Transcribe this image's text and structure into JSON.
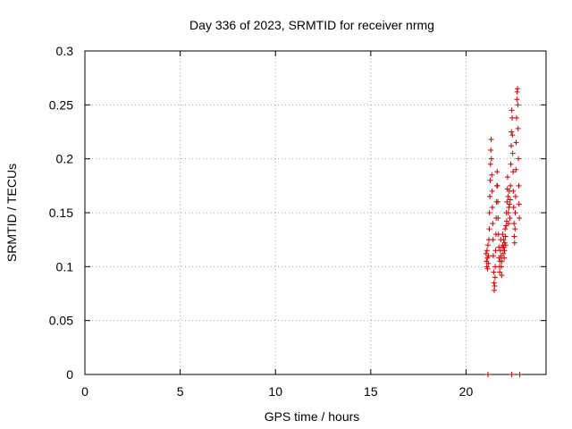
{
  "chart_data": {
    "type": "scatter",
    "title": "Day 336 of 2023, SRMTID for receiver nrmg",
    "xlabel": "GPS time / hours",
    "ylabel": "SRMTID / TECUs",
    "xlim": [
      0,
      24.2
    ],
    "ylim": [
      0,
      0.3
    ],
    "xticks": [
      "0",
      "5",
      "10",
      "15",
      "20"
    ],
    "xtick_values": [
      0,
      5,
      10,
      15,
      20
    ],
    "yticks": [
      "0",
      "0.05",
      "0.1",
      "0.15",
      "0.2",
      "0.25",
      "0.3"
    ],
    "ytick_values": [
      0,
      0.05,
      0.1,
      0.15,
      0.2,
      0.25,
      0.3
    ],
    "grid": true,
    "legend": "none",
    "marker": "plus",
    "color": "#cc0000",
    "series": [
      {
        "points": [
          [
            21.05,
            0.112
          ],
          [
            21.07,
            0.105
          ],
          [
            21.09,
            0.1
          ],
          [
            21.1,
            0.115
          ],
          [
            21.12,
            0.108
          ],
          [
            21.13,
            0.098
          ],
          [
            21.15,
            0.12
          ],
          [
            21.17,
            0.103
          ],
          [
            21.18,
            0.11
          ],
          [
            21.2,
            0.125
          ],
          [
            21.22,
            0.135
          ],
          [
            21.23,
            0.15
          ],
          [
            21.25,
            0.165
          ],
          [
            21.27,
            0.18
          ],
          [
            21.28,
            0.195
          ],
          [
            21.3,
            0.208
          ],
          [
            21.32,
            0.218
          ],
          [
            21.33,
            0.2
          ],
          [
            21.35,
            0.185
          ],
          [
            21.37,
            0.17
          ],
          [
            21.38,
            0.155
          ],
          [
            21.4,
            0.14
          ],
          [
            21.42,
            0.125
          ],
          [
            21.43,
            0.11
          ],
          [
            21.45,
            0.095
          ],
          [
            21.47,
            0.085
          ],
          [
            21.48,
            0.078
          ],
          [
            21.5,
            0.082
          ],
          [
            21.52,
            0.09
          ],
          [
            21.53,
            0.1
          ],
          [
            21.55,
            0.115
          ],
          [
            21.57,
            0.13
          ],
          [
            21.58,
            0.145
          ],
          [
            21.6,
            0.16
          ],
          [
            21.62,
            0.175
          ],
          [
            21.63,
            0.188
          ],
          [
            21.65,
            0.175
          ],
          [
            21.67,
            0.16
          ],
          [
            21.68,
            0.145
          ],
          [
            21.7,
            0.13
          ],
          [
            21.72,
            0.118
          ],
          [
            21.73,
            0.108
          ],
          [
            21.75,
            0.1
          ],
          [
            21.77,
            0.095
          ],
          [
            21.78,
            0.105
          ],
          [
            21.8,
            0.115
          ],
          [
            21.82,
            0.125
          ],
          [
            21.83,
            0.11
          ],
          [
            21.85,
            0.1
          ],
          [
            21.87,
            0.092
          ],
          [
            21.88,
            0.105
          ],
          [
            21.9,
            0.118
          ],
          [
            21.92,
            0.13
          ],
          [
            21.93,
            0.12
          ],
          [
            21.95,
            0.112
          ],
          [
            21.97,
            0.125
          ],
          [
            21.98,
            0.118
          ],
          [
            22.0,
            0.108
          ],
          [
            22.02,
            0.115
          ],
          [
            22.03,
            0.122
          ],
          [
            22.05,
            0.135
          ],
          [
            22.07,
            0.128
          ],
          [
            22.08,
            0.12
          ],
          [
            22.1,
            0.138
          ],
          [
            22.12,
            0.15
          ],
          [
            22.13,
            0.142
          ],
          [
            22.15,
            0.16
          ],
          [
            22.17,
            0.172
          ],
          [
            22.18,
            0.183
          ],
          [
            22.2,
            0.165
          ],
          [
            22.22,
            0.15
          ],
          [
            22.23,
            0.14
          ],
          [
            22.25,
            0.155
          ],
          [
            22.27,
            0.17
          ],
          [
            22.28,
            0.158
          ],
          [
            22.3,
            0.145
          ],
          [
            22.32,
            0.162
          ],
          [
            22.33,
            0.175
          ],
          [
            22.35,
            0.195
          ],
          [
            22.37,
            0.212
          ],
          [
            22.38,
            0.225
          ],
          [
            22.4,
            0.245
          ],
          [
            22.42,
            0.238
          ],
          [
            22.43,
            0.222
          ],
          [
            22.45,
            0.205
          ],
          [
            22.47,
            0.188
          ],
          [
            22.48,
            0.17
          ],
          [
            22.5,
            0.155
          ],
          [
            22.52,
            0.14
          ],
          [
            22.53,
            0.128
          ],
          [
            22.55,
            0.122
          ],
          [
            22.57,
            0.135
          ],
          [
            22.58,
            0.15
          ],
          [
            22.6,
            0.165
          ],
          [
            22.62,
            0.19
          ],
          [
            22.63,
            0.215
          ],
          [
            22.65,
            0.238
          ],
          [
            22.67,
            0.255
          ],
          [
            22.68,
            0.262
          ],
          [
            22.7,
            0.265
          ],
          [
            22.72,
            0.25
          ],
          [
            22.73,
            0.228
          ],
          [
            22.75,
            0.2
          ],
          [
            22.77,
            0.175
          ],
          [
            22.78,
            0.158
          ],
          [
            22.8,
            0.145
          ],
          [
            21.15,
            0.0
          ],
          [
            22.4,
            0.0
          ],
          [
            22.82,
            0.0
          ]
        ]
      }
    ]
  }
}
